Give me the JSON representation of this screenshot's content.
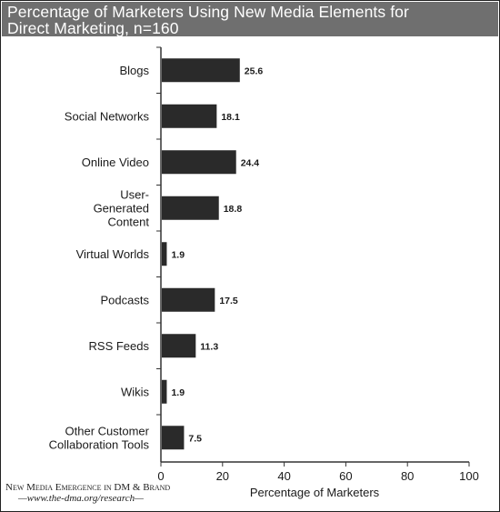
{
  "title_line1": "Percentage of Marketers Using New Media Elements for",
  "title_line2": "Direct Marketing, n=160",
  "source_line1": "New Media Emergence in DM & Brand",
  "source_line2": "—www.the-dma.org/research—",
  "colors": {
    "bar": "#2a2a2a",
    "title_bg": "#6f6f6f",
    "axis": "#333333"
  },
  "chart_data": {
    "type": "bar",
    "orientation": "horizontal",
    "categories": [
      [
        "Blogs"
      ],
      [
        "Social Networks"
      ],
      [
        "Online Video"
      ],
      [
        "User-",
        "Generated",
        "Content"
      ],
      [
        "Virtual Worlds"
      ],
      [
        "Podcasts"
      ],
      [
        "RSS Feeds"
      ],
      [
        "Wikis"
      ],
      [
        "Other Customer",
        "Collaboration Tools"
      ]
    ],
    "values": [
      25.6,
      18.1,
      24.4,
      18.8,
      1.9,
      17.5,
      11.3,
      1.9,
      7.5
    ],
    "value_labels": [
      "25.6",
      "18.1",
      "24.4",
      "18.8",
      "1.9",
      "17.5",
      "11.3",
      "1.9",
      "7.5"
    ],
    "xlabel": "Percentage of Marketers",
    "xlim": [
      0,
      100
    ],
    "xticks": [
      0,
      20,
      40,
      60,
      80,
      100
    ],
    "grid": false,
    "legend": "none"
  }
}
